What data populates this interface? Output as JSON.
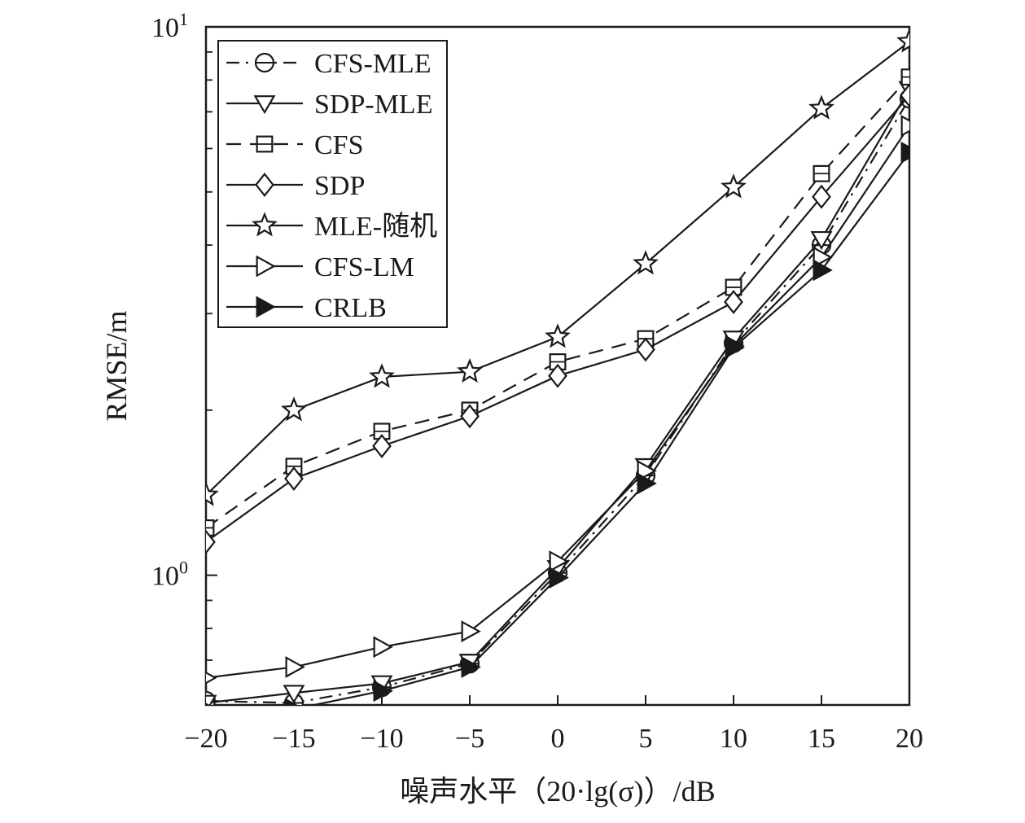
{
  "chart_data": {
    "type": "line",
    "title": "",
    "xlabel": "噪声水平（20·lg(σ)）/dB",
    "ylabel": "RMSE/m",
    "yscale": "log",
    "xlim": [
      -20,
      20
    ],
    "ylim": [
      0.58,
      10
    ],
    "grid": false,
    "legend_position": "top-left",
    "x": [
      -20,
      -15,
      -10,
      -5,
      0,
      5,
      10,
      15,
      20
    ],
    "x_tick_labels": [
      "−20",
      "−15",
      "−10",
      "−5",
      "0",
      "5",
      "10",
      "15",
      "20"
    ],
    "y_major_ticks": [
      {
        "value": 1,
        "base": "10",
        "exp": "0"
      },
      {
        "value": 10,
        "base": "10",
        "exp": "1"
      }
    ],
    "series": [
      {
        "name": "CFS-MLE",
        "marker": "circle-line",
        "line": "dashdot",
        "values": [
          0.59,
          0.585,
          0.625,
          0.69,
          1.01,
          1.52,
          2.65,
          4.0,
          7.4
        ]
      },
      {
        "name": "SDP-MLE",
        "marker": "triangle-down",
        "line": "solid",
        "values": [
          0.585,
          0.61,
          0.635,
          0.695,
          1.03,
          1.58,
          2.7,
          4.1,
          7.7
        ]
      },
      {
        "name": "CFS",
        "marker": "square",
        "line": "dashed",
        "values": [
          1.22,
          1.58,
          1.83,
          2.0,
          2.45,
          2.7,
          3.35,
          5.4,
          8.1
        ]
      },
      {
        "name": "SDP",
        "marker": "diamond",
        "line": "solid",
        "values": [
          1.15,
          1.5,
          1.72,
          1.95,
          2.31,
          2.58,
          3.15,
          4.9,
          7.5
        ]
      },
      {
        "name": "MLE-随机",
        "marker": "star",
        "line": "solid",
        "values": [
          1.4,
          2.0,
          2.3,
          2.35,
          2.72,
          3.7,
          5.1,
          7.1,
          9.4
        ]
      },
      {
        "name": "CFS-LM",
        "marker": "triangle-right",
        "line": "solid",
        "values": [
          0.65,
          0.68,
          0.74,
          0.79,
          1.06,
          1.55,
          2.62,
          3.8,
          6.6
        ]
      },
      {
        "name": "CRLB",
        "marker": "triangle-right-filled",
        "line": "solid",
        "values": [
          0.57,
          0.57,
          0.615,
          0.68,
          0.99,
          1.47,
          2.6,
          3.6,
          5.9
        ]
      }
    ]
  }
}
